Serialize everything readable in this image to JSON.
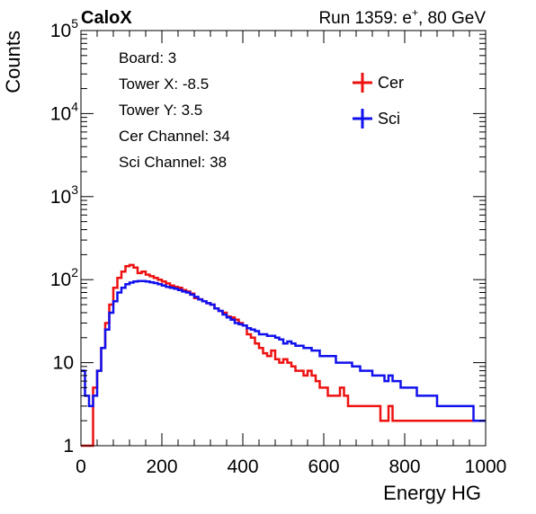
{
  "brand": "CaloX",
  "run_label": "Run 1359: e",
  "run_particle_sup": "+",
  "run_suffix": ", 80 GeV",
  "info_box": {
    "lines": [
      "Board: 3",
      "Tower X: -8.5",
      "Tower Y: 3.5",
      "Cer Channel: 34",
      "Sci Channel: 38"
    ]
  },
  "colors": {
    "Cer": "#ee1111",
    "Sci": "#1111ee",
    "background": "#ffffff",
    "axis": "#000000"
  },
  "chart_data": {
    "type": "line",
    "style": "step-histogram",
    "title": "",
    "xlabel": "Energy HG",
    "ylabel": "Counts",
    "xlim": [
      0,
      1000
    ],
    "ylim": [
      1,
      100000
    ],
    "yscale": "log",
    "grid": false,
    "legend_position": "top-right",
    "x_ticks": [
      0,
      200,
      400,
      600,
      800,
      1000
    ],
    "x_tick_labels": [
      "0",
      "200",
      "400",
      "600",
      "800",
      "1000"
    ],
    "y_ticks": [
      1,
      10,
      100,
      1000,
      10000,
      100000
    ],
    "y_tick_labels": [
      {
        "base": "1",
        "exp": ""
      },
      {
        "base": "10",
        "exp": ""
      },
      {
        "base": "10",
        "exp": "2"
      },
      {
        "base": "10",
        "exp": "3"
      },
      {
        "base": "10",
        "exp": "4"
      },
      {
        "base": "10",
        "exp": "5"
      }
    ],
    "bin_width": 10,
    "series": [
      {
        "name": "Cer",
        "color": "#ee1111",
        "x": [
          0,
          10,
          20,
          30,
          40,
          50,
          60,
          70,
          80,
          90,
          100,
          110,
          120,
          130,
          140,
          150,
          160,
          170,
          180,
          190,
          200,
          210,
          220,
          230,
          240,
          250,
          260,
          270,
          280,
          290,
          300,
          310,
          320,
          330,
          340,
          350,
          360,
          370,
          380,
          390,
          400,
          410,
          420,
          430,
          440,
          450,
          460,
          470,
          480,
          490,
          500,
          510,
          520,
          530,
          540,
          550,
          560,
          570,
          580,
          590,
          600,
          610,
          620,
          630,
          640,
          650,
          660,
          670,
          680,
          690,
          700,
          710,
          720,
          730,
          740,
          750,
          760,
          770,
          780,
          790,
          800,
          810,
          820,
          830,
          840,
          850,
          860,
          870,
          880,
          890,
          900,
          910,
          920,
          930,
          940,
          950,
          960,
          970,
          980,
          990
        ],
        "values": [
          1,
          1,
          1,
          5,
          8,
          15,
          30,
          50,
          80,
          105,
          125,
          145,
          150,
          140,
          120,
          125,
          115,
          110,
          105,
          100,
          95,
          90,
          85,
          82,
          80,
          75,
          72,
          68,
          60,
          58,
          55,
          52,
          50,
          45,
          42,
          40,
          36,
          35,
          33,
          30,
          28,
          22,
          20,
          17,
          15,
          13,
          12,
          14,
          11,
          10,
          11,
          10,
          9,
          8,
          8,
          7,
          8,
          7,
          6,
          5,
          5,
          4,
          4,
          4,
          5,
          4,
          3,
          3,
          3,
          3,
          3,
          3,
          3,
          3,
          2,
          2,
          3,
          2,
          2,
          2,
          2,
          2,
          2,
          2,
          2,
          2,
          2,
          2,
          2,
          2,
          2,
          2,
          2,
          2,
          2,
          2,
          2,
          2,
          2,
          2
        ]
      },
      {
        "name": "Sci",
        "color": "#1111ee",
        "x": [
          0,
          10,
          20,
          30,
          40,
          50,
          60,
          70,
          80,
          90,
          100,
          110,
          120,
          130,
          140,
          150,
          160,
          170,
          180,
          190,
          200,
          210,
          220,
          230,
          240,
          250,
          260,
          270,
          280,
          290,
          300,
          310,
          320,
          330,
          340,
          350,
          360,
          370,
          380,
          390,
          400,
          410,
          420,
          430,
          440,
          450,
          460,
          470,
          480,
          490,
          500,
          510,
          520,
          530,
          540,
          550,
          560,
          570,
          580,
          590,
          600,
          610,
          620,
          630,
          640,
          650,
          660,
          670,
          680,
          690,
          700,
          710,
          720,
          730,
          740,
          750,
          760,
          770,
          780,
          790,
          800,
          810,
          820,
          830,
          840,
          850,
          860,
          870,
          880,
          890,
          900,
          910,
          920,
          930,
          940,
          950,
          960,
          970,
          980,
          990
        ],
        "values": [
          8,
          4,
          3,
          4,
          8,
          15,
          25,
          40,
          55,
          70,
          80,
          88,
          92,
          95,
          96,
          96,
          95,
          93,
          91,
          88,
          85,
          82,
          80,
          78,
          75,
          72,
          70,
          66,
          62,
          58,
          55,
          52,
          50,
          45,
          42,
          38,
          35,
          33,
          30,
          29,
          28,
          26,
          25,
          24,
          22,
          22,
          21,
          21,
          20,
          19,
          17,
          18,
          17,
          16,
          16,
          15,
          15,
          14,
          14,
          12,
          12,
          12,
          12,
          10,
          10,
          10,
          10,
          9,
          9,
          8,
          8,
          8,
          7,
          7,
          7,
          6,
          7,
          6,
          6,
          5,
          5,
          5,
          5,
          4,
          4,
          4,
          4,
          4,
          3,
          3,
          3,
          3,
          3,
          3,
          3,
          3,
          3,
          2,
          2,
          2
        ]
      }
    ]
  }
}
